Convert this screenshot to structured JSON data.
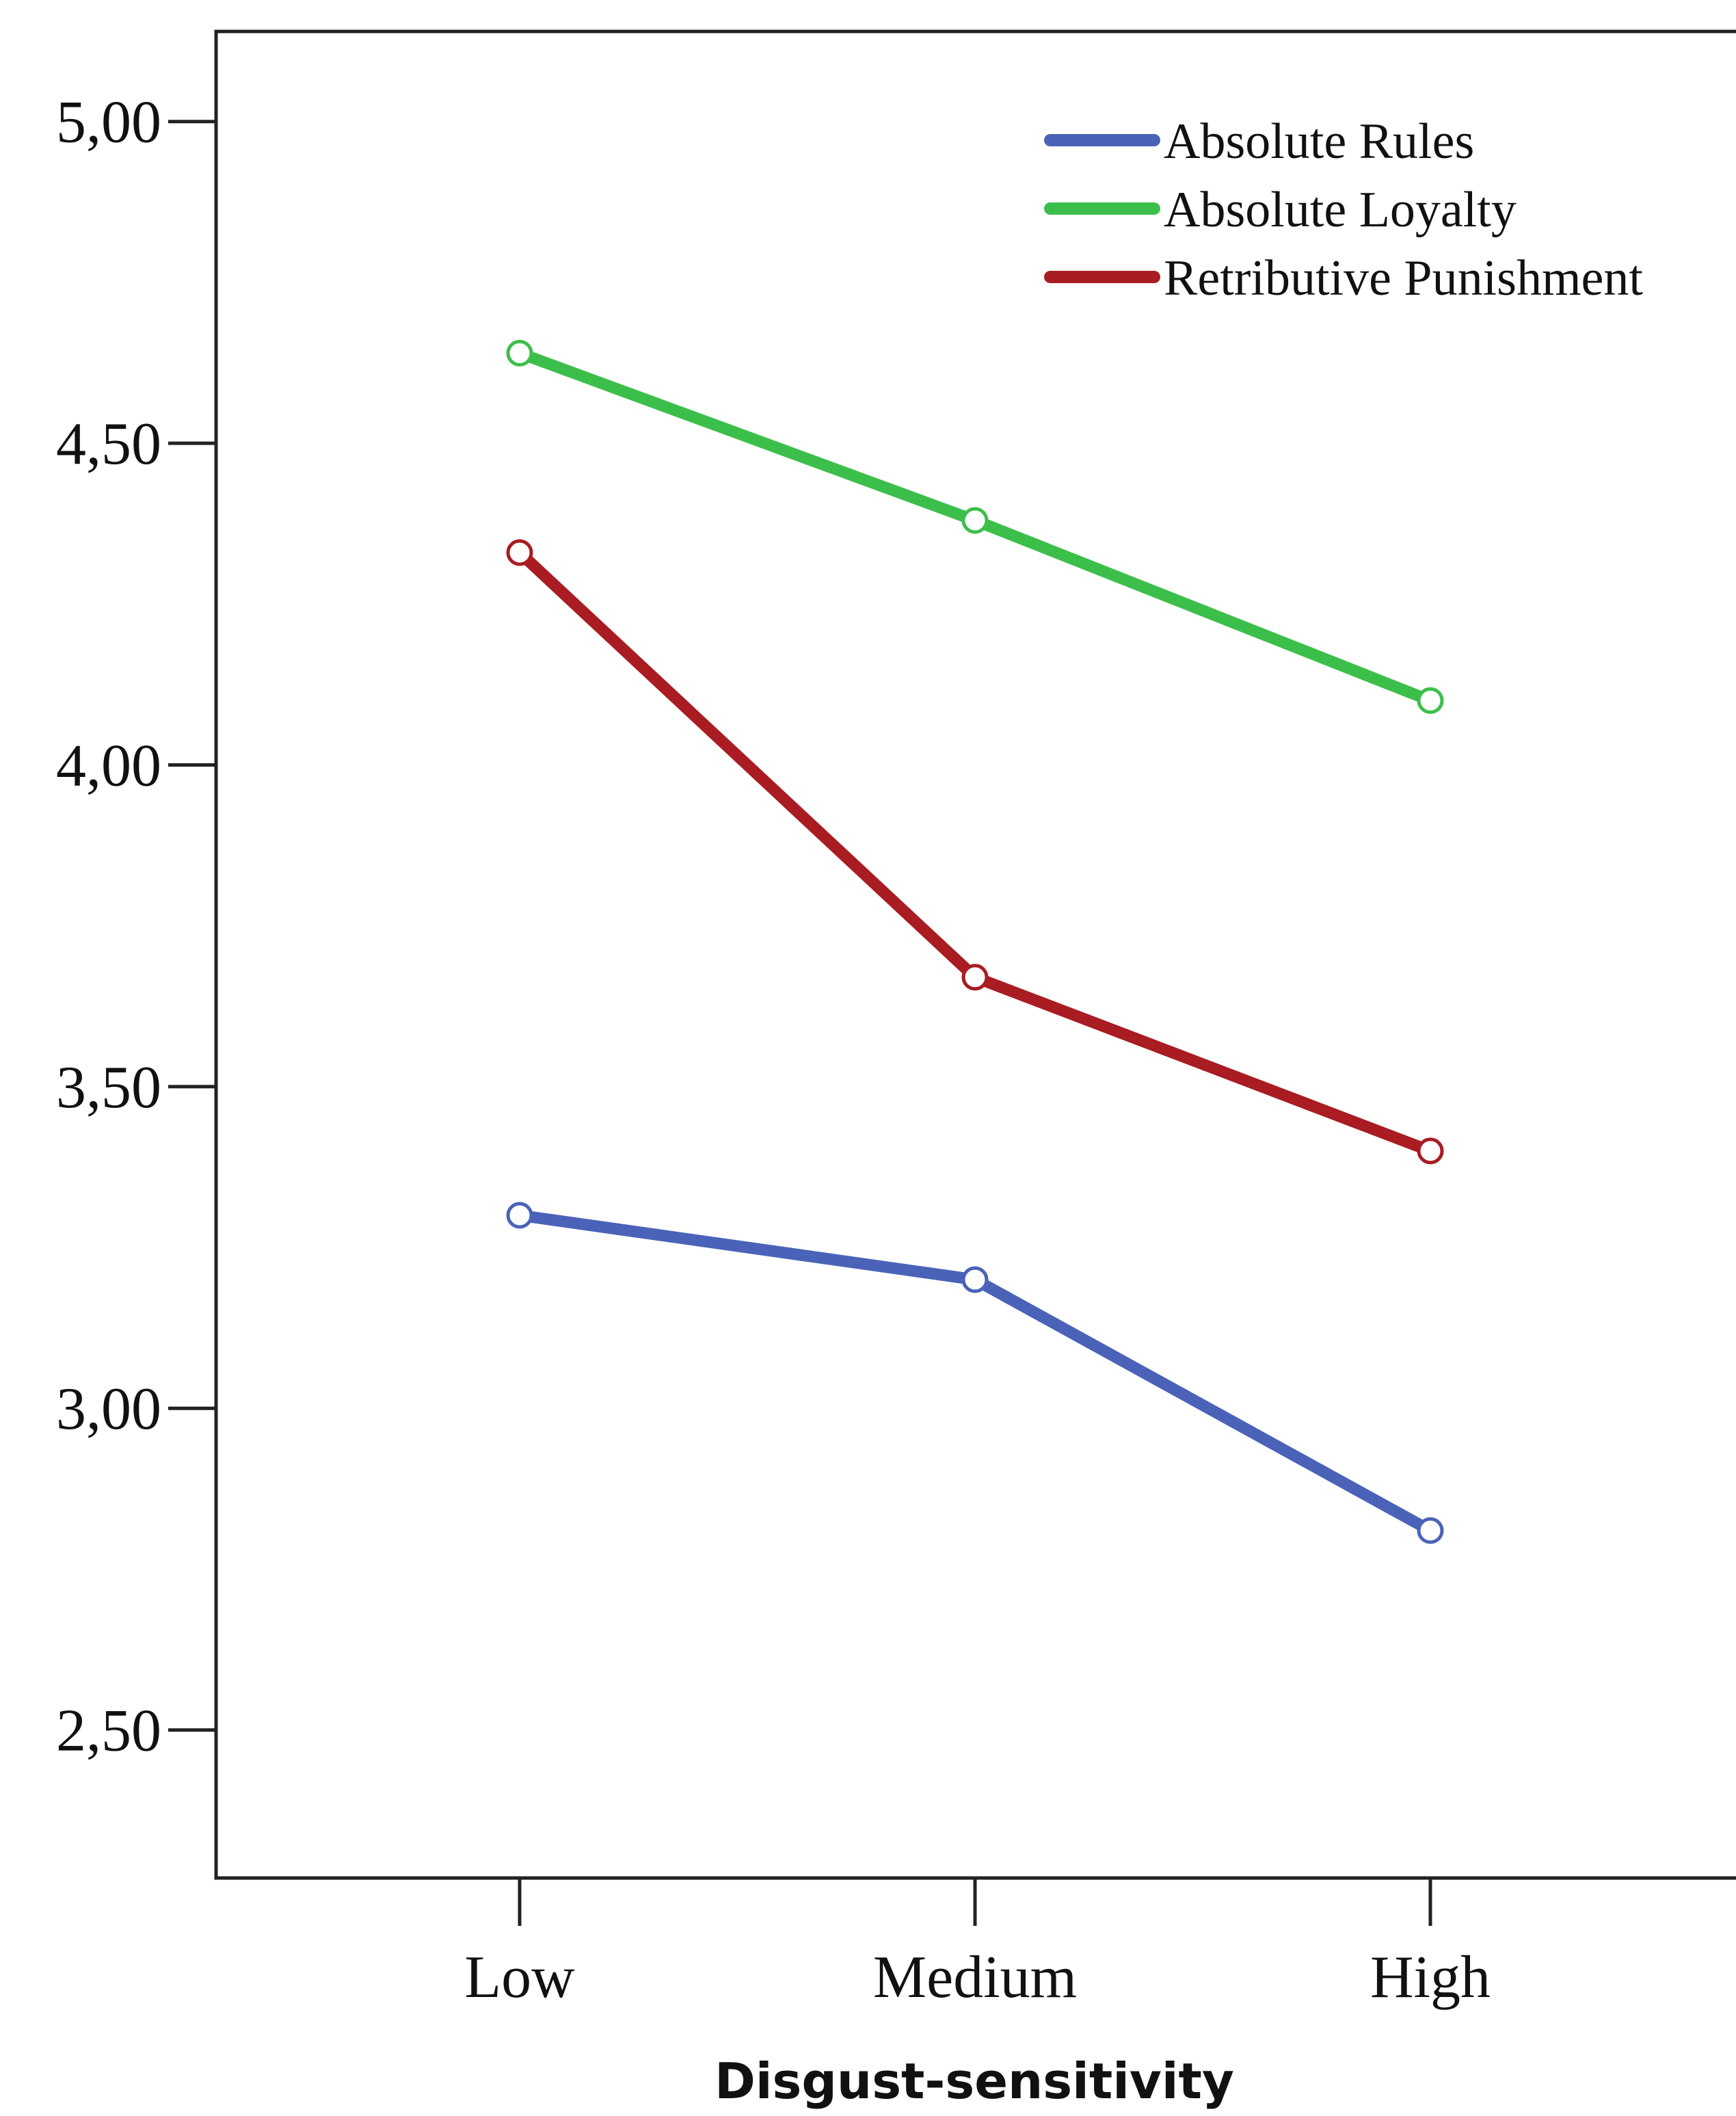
{
  "chart_data": {
    "type": "line",
    "categories": [
      "Low",
      "Medium",
      "High"
    ],
    "series": [
      {
        "name": "Absolute Rules",
        "values": [
          3.3,
          3.2,
          2.81
        ],
        "color": "#4a63b8"
      },
      {
        "name": "Absolute Loyalty",
        "values": [
          4.64,
          4.38,
          4.1
        ],
        "color": "#3cbf4a"
      },
      {
        "name": "Retributive Punishment",
        "values": [
          4.33,
          3.67,
          3.4
        ],
        "color": "#a81c22"
      }
    ],
    "xlabel": "Disgust-sensitivity",
    "ylabel": "",
    "ylim": [
      2.27,
      5.14
    ],
    "yticks": [
      {
        "value": 5.0,
        "label": "5,00"
      },
      {
        "value": 4.5,
        "label": "4,50"
      },
      {
        "value": 4.0,
        "label": "4,00"
      },
      {
        "value": 3.5,
        "label": "3,50"
      },
      {
        "value": 3.0,
        "label": "3,00"
      },
      {
        "value": 2.5,
        "label": "2,50"
      }
    ],
    "grid": false,
    "legend_position": "top-right"
  }
}
